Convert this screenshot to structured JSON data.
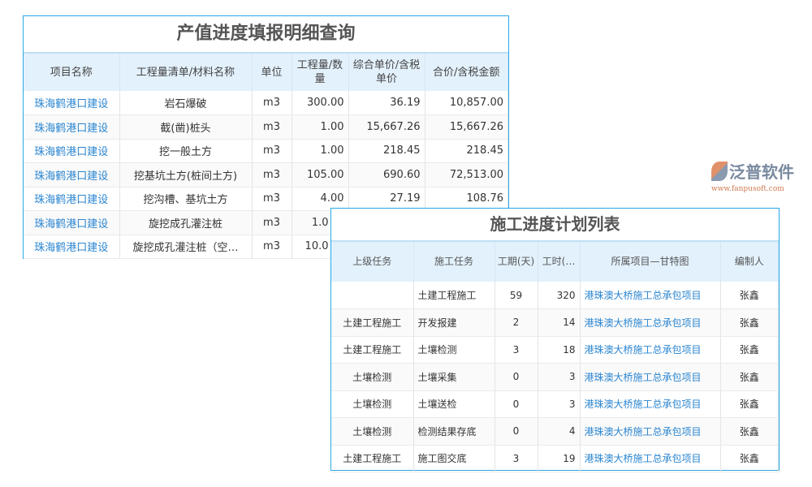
{
  "table1": {
    "title": "产值进度填报明细查询",
    "headers": [
      "项目名称",
      "工程量清单/材料名称",
      "单位",
      "工程量/数量",
      "综合单价/含税单价",
      "合价/含税金额"
    ],
    "rows": [
      [
        "珠海鹤港口建设",
        "岩石爆破",
        "m3",
        "300.00",
        "36.19",
        "10,857.00"
      ],
      [
        "珠海鹤港口建设",
        "截(凿)桩头",
        "m3",
        "1.00",
        "15,667.26",
        "15,667.26"
      ],
      [
        "珠海鹤港口建设",
        "挖一般土方",
        "m3",
        "1.00",
        "218.45",
        "218.45"
      ],
      [
        "珠海鹤港口建设",
        "挖基坑土方(桩间土方)",
        "m3",
        "105.00",
        "690.60",
        "72,513.00"
      ],
      [
        "珠海鹤港口建设",
        "挖沟槽、基坑土方",
        "m3",
        "4.00",
        "27.19",
        "108.76"
      ],
      [
        "珠海鹤港口建设",
        "旋挖成孔灌注桩",
        "m3",
        "1.0",
        "",
        ""
      ],
      [
        "珠海鹤港口建设",
        "旋挖成孔灌注桩（空…",
        "m3",
        "10.0",
        "",
        ""
      ]
    ]
  },
  "table2": {
    "title": "施工进度计划列表",
    "headers": [
      "上级任务",
      "施工任务",
      "工期(天)",
      "工时(…",
      "所属项目—甘特图",
      "编制人"
    ],
    "rows": [
      [
        "",
        "土建工程施工",
        "59",
        "320",
        "港珠澳大桥施工总承包项目",
        "张鑫"
      ],
      [
        "土建工程施工",
        "开发报建",
        "2",
        "14",
        "港珠澳大桥施工总承包项目",
        "张鑫"
      ],
      [
        "土建工程施工",
        "土壤检测",
        "3",
        "18",
        "港珠澳大桥施工总承包项目",
        "张鑫"
      ],
      [
        "土壤检测",
        "土壤采集",
        "0",
        "3",
        "港珠澳大桥施工总承包项目",
        "张鑫"
      ],
      [
        "土壤检测",
        "土壤送检",
        "0",
        "3",
        "港珠澳大桥施工总承包项目",
        "张鑫"
      ],
      [
        "土壤检测",
        "检测结果存底",
        "0",
        "4",
        "港珠澳大桥施工总承包项目",
        "张鑫"
      ],
      [
        "土建工程施工",
        "施工图交底",
        "3",
        "19",
        "港珠澳大桥施工总承包项目",
        "张鑫"
      ]
    ]
  },
  "logo": {
    "name": "泛普软件",
    "url": "www.fanpusoft.com"
  },
  "colors": {
    "border": "#29a8e6",
    "header_bg": "#e3f1fc",
    "link": "#2a85d0"
  }
}
